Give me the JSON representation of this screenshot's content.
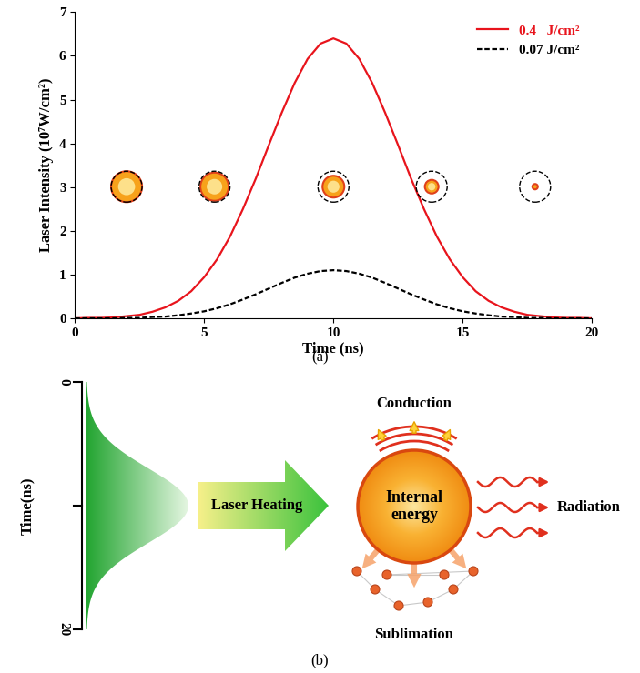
{
  "chart_data": {
    "type": "line",
    "x_label": "Time (ns)",
    "y_label": "Laser Intensity (10⁷W/cm²)",
    "x": [
      0,
      0.5,
      1,
      1.5,
      2,
      2.5,
      3,
      3.5,
      4,
      4.5,
      5,
      5.5,
      6,
      6.5,
      7,
      7.5,
      8,
      8.5,
      9,
      9.5,
      10,
      10.5,
      11,
      11.5,
      12,
      12.5,
      13,
      13.5,
      14,
      14.5,
      15,
      15.5,
      16,
      16.5,
      17,
      17.5,
      18,
      18.5,
      19,
      19.5,
      20
    ],
    "series": [
      {
        "name": "0.4   J/cm²",
        "color": "#e8141c",
        "line_style": "solid",
        "values": [
          0.0,
          0.01,
          0.01,
          0.02,
          0.05,
          0.08,
          0.15,
          0.25,
          0.4,
          0.62,
          0.94,
          1.35,
          1.87,
          2.5,
          3.2,
          3.96,
          4.7,
          5.38,
          5.93,
          6.28,
          6.4,
          6.28,
          5.93,
          5.38,
          4.7,
          3.96,
          3.2,
          2.5,
          1.87,
          1.35,
          0.94,
          0.62,
          0.4,
          0.25,
          0.15,
          0.08,
          0.05,
          0.02,
          0.01,
          0.01,
          0.0
        ]
      },
      {
        "name": "0.07 J/cm²",
        "color": "#000000",
        "line_style": "dashed",
        "values": [
          0.0,
          0.0,
          0.0,
          0.0,
          0.01,
          0.01,
          0.03,
          0.04,
          0.07,
          0.11,
          0.16,
          0.23,
          0.32,
          0.43,
          0.55,
          0.68,
          0.81,
          0.93,
          1.02,
          1.08,
          1.1,
          1.08,
          1.02,
          0.93,
          0.81,
          0.68,
          0.55,
          0.43,
          0.32,
          0.23,
          0.16,
          0.11,
          0.07,
          0.04,
          0.03,
          0.01,
          0.01,
          0.0,
          0.0,
          0.0,
          0.0
        ]
      }
    ],
    "xlim": [
      0,
      20
    ],
    "xticks": [
      0,
      5,
      10,
      15,
      20
    ],
    "ylim": [
      0,
      7
    ],
    "yticks": [
      0,
      1,
      2,
      3,
      4,
      5,
      6,
      7
    ],
    "grid": false,
    "legend": "upper right"
  },
  "diagram": {
    "time_axis": {
      "label": "Time(ns)",
      "ticks": [
        0,
        20
      ]
    },
    "arrow_label": "Laser Heating",
    "center_label": "Internal\nenergy",
    "outputs": {
      "top": "Conduction",
      "right": "Radiation",
      "bottom": "Sublimation"
    }
  },
  "panel_labels": [
    "(a)",
    "(b)"
  ]
}
